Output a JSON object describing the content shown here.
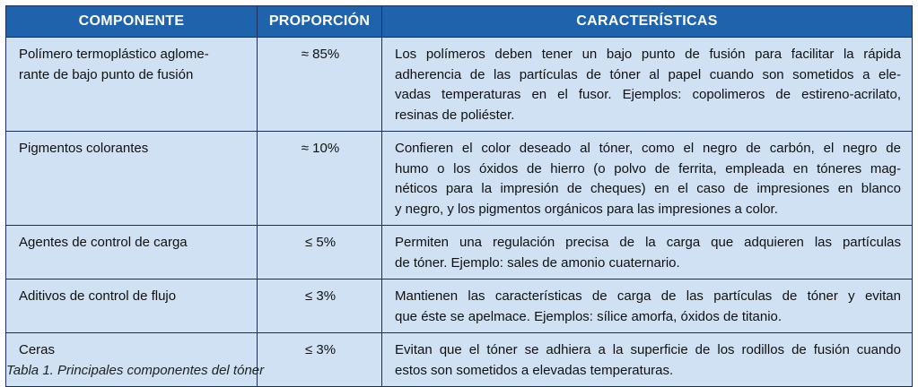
{
  "table": {
    "headers": [
      "COMPONENTE",
      "PROPORCIÓN",
      "CARACTERÍSTICAS"
    ],
    "rows": [
      [
        [
          "Polímero termoplástico aglome-",
          "rante de bajo punto de fusión"
        ],
        [
          "≈ 85%"
        ],
        [
          "Los polímeros deben tener un bajo punto de fusión para facilitar la rápida",
          "adherencia de las partículas de tóner al papel cuando son sometidos a ele-",
          "vadas temperaturas en el fusor. Ejemplos: copolimeros de estireno-acrilato,",
          "resinas de poliéster."
        ]
      ],
      [
        [
          "Pigmentos colorantes"
        ],
        [
          "≈ 10%"
        ],
        [
          "Confieren el color deseado al tóner, como el negro de carbón, el negro de",
          "humo o los óxidos de hierro (o polvo de ferrita, empleada en tóneres mag-",
          "néticos para la impresión de cheques) en el caso de impresiones en blanco",
          "y negro, y los pigmentos orgánicos para las impresiones a color."
        ]
      ],
      [
        [
          "Agentes de control de carga"
        ],
        [
          "≤ 5%"
        ],
        [
          "Permiten una regulación precisa de la carga que adquieren las partículas",
          "de tóner. Ejemplo: sales de amonio cuaternario."
        ]
      ],
      [
        [
          "Aditivos de control de flujo"
        ],
        [
          "≤ 3%"
        ],
        [
          "Mantienen las características de carga de las partículas de tóner y evitan",
          "que éste se apelmace. Ejemplos: sílice amorfa, óxidos de titanio."
        ]
      ],
      [
        [
          "Ceras"
        ],
        [
          "≤ 3%"
        ],
        [
          "Evitan que el tóner se adhiera a la superficie de los rodillos de fusión cuando",
          "estos son sometidos a elevadas temperaturas."
        ]
      ]
    ]
  },
  "caption": "Tabla 1. Principales componentes del tóner"
}
